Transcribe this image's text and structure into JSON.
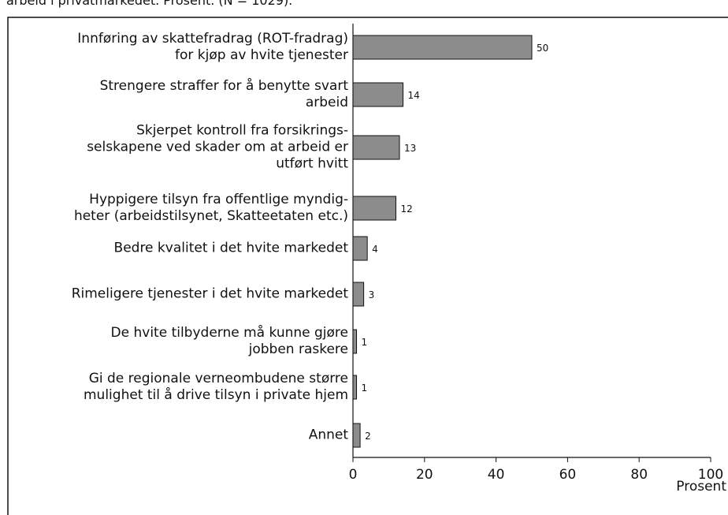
{
  "chart_data": {
    "type": "barh",
    "subtitle": "arbeid i privatmarkedet. Prosent. (N = 1029).",
    "categories": [
      "Innføring av skattefradrag (ROT-fradrag)\nfor kjøp av hvite tjenester",
      "Strengere straffer for å benytte svart\narbeid",
      "Skjerpet kontroll fra forsikrings-\nselskapene ved skader om at arbeid er\nutført hvitt",
      "Hyppigere tilsyn fra offentlige myndig-\nheter (arbeidstilsynet, Skatteetaten etc.)",
      "Bedre kvalitet i det hvite markedet",
      "Rimeligere tjenester i det hvite markedet",
      "De hvite tilbyderne må kunne gjøre\njobben raskere",
      "Gi de regionale verneombudene større\nmulighet til å drive tilsyn i private hjem",
      "Annet"
    ],
    "values": [
      50,
      14,
      13,
      12,
      4,
      3,
      1,
      1,
      2
    ],
    "color": "#8c8c8c",
    "xlim": [
      0,
      100
    ],
    "xticks": [
      0,
      20,
      40,
      60,
      80,
      100
    ],
    "xlabel": "Prosent"
  }
}
